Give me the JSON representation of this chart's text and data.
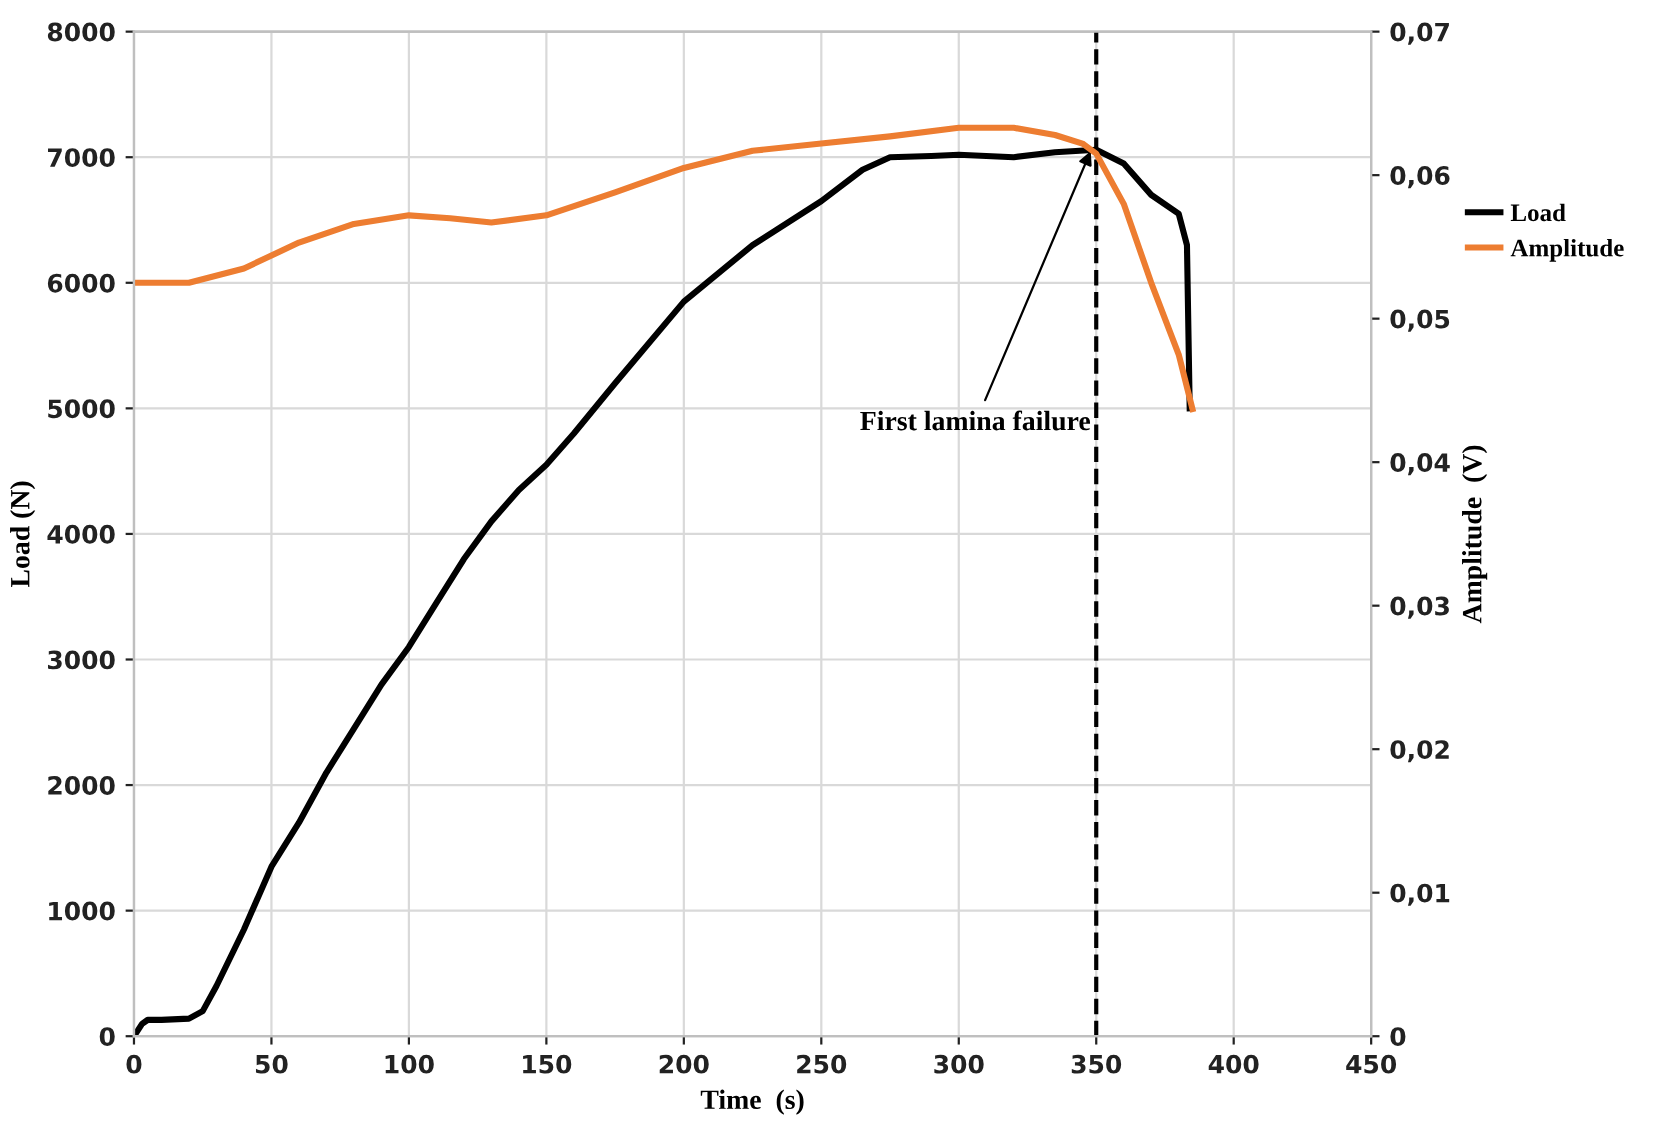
{
  "chart_data": {
    "type": "line",
    "xlabel": "Time  (s)",
    "ylabel": "Load (N)",
    "y2label": "Amplitude  (V)",
    "xlim": [
      0,
      450
    ],
    "xticks": [
      0,
      50,
      100,
      150,
      200,
      250,
      300,
      350,
      400,
      450
    ],
    "ylim": [
      0,
      8000
    ],
    "yticks": [
      0,
      1000,
      2000,
      3000,
      4000,
      5000,
      6000,
      7000,
      8000
    ],
    "y2lim": [
      0,
      0.07
    ],
    "y2ticks": [
      {
        "value": 0,
        "label": "0"
      },
      {
        "value": 0.01,
        "label": "0,01"
      },
      {
        "value": 0.02,
        "label": "0,02"
      },
      {
        "value": 0.03,
        "label": "0,03"
      },
      {
        "value": 0.04,
        "label": "0,04"
      },
      {
        "value": 0.05,
        "label": "0,05"
      },
      {
        "value": 0.06,
        "label": "0,06"
      },
      {
        "value": 0.07,
        "label": "0,07"
      }
    ],
    "grid": true,
    "legend": "right",
    "line_style": "solid",
    "marker": "none",
    "series": [
      {
        "name": "Load",
        "color": "#000000",
        "x": [
          0,
          3,
          5,
          10,
          20,
          25,
          30,
          40,
          50,
          60,
          70,
          80,
          90,
          100,
          110,
          120,
          130,
          140,
          150,
          160,
          175,
          200,
          225,
          250,
          265,
          275,
          290,
          300,
          320,
          335,
          350,
          360,
          370,
          380,
          383,
          384
        ],
        "values": [
          0,
          100,
          130,
          130,
          140,
          200,
          400,
          850,
          1350,
          1700,
          2100,
          2450,
          2800,
          3100,
          3450,
          3800,
          4100,
          4350,
          4550,
          4800,
          5200,
          5850,
          6300,
          6650,
          6900,
          7000,
          7010,
          7020,
          7000,
          7040,
          7060,
          6950,
          6700,
          6550,
          6300,
          5000
        ]
      },
      {
        "name": "Amplitude",
        "color": "#ed7d31",
        "axis": "y2",
        "x": [
          0,
          20,
          40,
          60,
          80,
          100,
          115,
          130,
          150,
          175,
          200,
          225,
          250,
          275,
          300,
          320,
          335,
          345,
          350,
          360,
          370,
          380,
          385
        ],
        "values": [
          0.0525,
          0.0525,
          0.0535,
          0.0553,
          0.0566,
          0.0572,
          0.057,
          0.0567,
          0.0572,
          0.0588,
          0.0605,
          0.0617,
          0.0622,
          0.0627,
          0.0633,
          0.0633,
          0.0628,
          0.0622,
          0.0615,
          0.058,
          0.0525,
          0.0475,
          0.0437
        ]
      }
    ],
    "ref_lines": [
      {
        "axis": "x",
        "value": 350,
        "color": "#000000",
        "line_style": "dashed"
      }
    ],
    "annotations": [
      {
        "text": "First lamina failure",
        "x": 348,
        "y": 7050
      }
    ]
  }
}
